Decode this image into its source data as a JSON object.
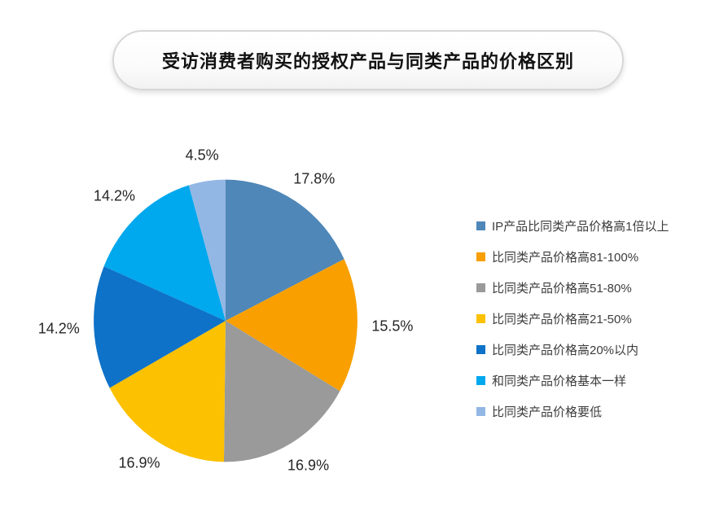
{
  "title": "受访消费者购买的授权产品与同类产品的价格区别",
  "chart_data": {
    "type": "pie",
    "title": "受访消费者购买的授权产品与同类产品的价格区别",
    "start_angle_deg": 0,
    "direction": "clockwise",
    "legend_position": "right",
    "background_color": "#ffffff",
    "slices": [
      {
        "label": "IP产品比同类产品价格高1倍以上",
        "value": 17.8,
        "display": "17.8%",
        "color": "#4F87B8"
      },
      {
        "label": "比同类产品价格高81-100%",
        "value": 15.5,
        "display": "15.5%",
        "color": "#F9A000"
      },
      {
        "label": "比同类产品价格高51-80%",
        "value": 16.9,
        "display": "16.9%",
        "color": "#9A9A9A"
      },
      {
        "label": "比同类产品价格高21-50%",
        "value": 16.9,
        "display": "16.9%",
        "color": "#FCC100"
      },
      {
        "label": "比同类产品价格高20%以内",
        "value": 14.2,
        "display": "14.2%",
        "color": "#0E72C8"
      },
      {
        "label": "和同类产品价格基本一样",
        "value": 14.2,
        "display": "14.2%",
        "color": "#00A8EE"
      },
      {
        "label": "比同类产品价格要低",
        "value": 4.5,
        "display": "4.5%",
        "color": "#93B7E4"
      }
    ]
  }
}
